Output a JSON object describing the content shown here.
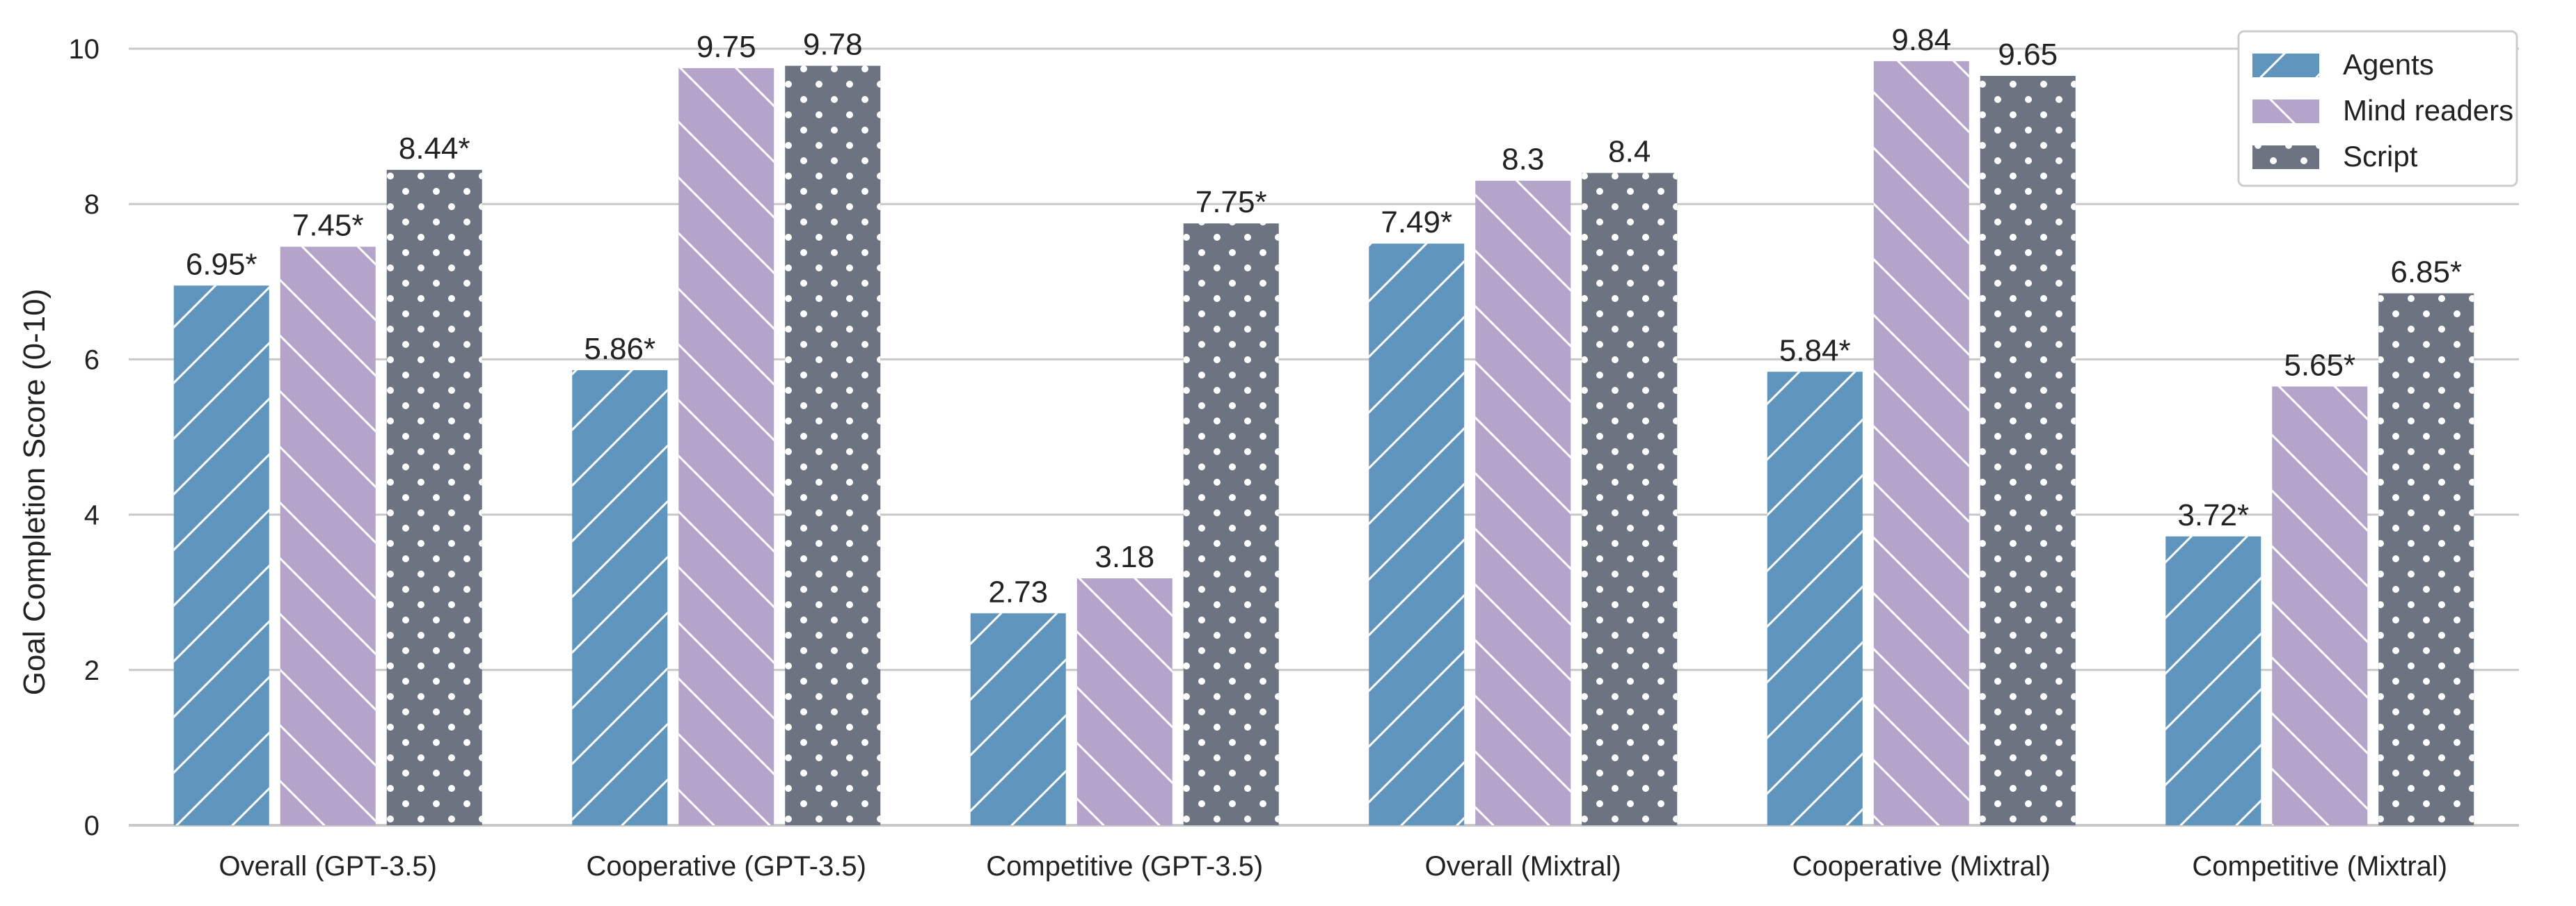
{
  "chart_data": {
    "type": "bar",
    "ylabel": "Goal Completion Score (0-10)",
    "ylim": [
      0,
      10
    ],
    "yticks": [
      0,
      2,
      4,
      6,
      8,
      10
    ],
    "grid": "horizontal",
    "legend_position": "top-right",
    "categories": [
      "Overall (GPT-3.5)",
      "Cooperative (GPT-3.5)",
      "Competitive (GPT-3.5)",
      "Overall (Mixtral)",
      "Cooperative (Mixtral)",
      "Competitive (Mixtral)"
    ],
    "series": [
      {
        "name": "Agents",
        "color": "#6096bd",
        "pattern": "forward-diagonal",
        "values": [
          6.95,
          5.86,
          2.73,
          7.49,
          5.84,
          3.72
        ],
        "labels": [
          "6.95*",
          "5.86*",
          "2.73",
          "7.49*",
          "5.84*",
          "3.72*"
        ]
      },
      {
        "name": "Mind readers",
        "color": "#b5a4c9",
        "pattern": "backward-diagonal",
        "values": [
          7.45,
          9.75,
          3.18,
          8.3,
          9.84,
          5.65
        ],
        "labels": [
          "7.45*",
          "9.75",
          "3.18",
          "8.3",
          "9.84",
          "5.65*"
        ]
      },
      {
        "name": "Script",
        "color": "#6b7480",
        "pattern": "dots",
        "values": [
          8.44,
          9.78,
          7.75,
          8.4,
          9.65,
          6.85
        ],
        "labels": [
          "8.44*",
          "9.78",
          "7.75*",
          "8.4",
          "9.65",
          "6.85*"
        ]
      }
    ]
  }
}
